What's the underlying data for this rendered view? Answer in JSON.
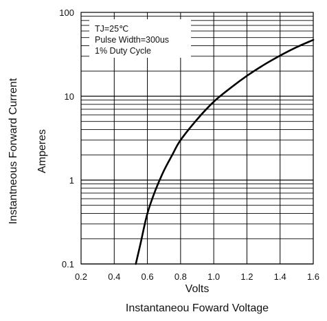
{
  "chart_data": {
    "type": "line",
    "xlabel": "Volts",
    "xlabel2": "Instantaneou Foward Voltage",
    "ylabel_line1": "Instantneous Forward Current",
    "ylabel_line2": "Amperes",
    "x_scale": "linear",
    "y_scale": "log",
    "xlim": [
      0.2,
      1.6
    ],
    "ylim": [
      0.1,
      100
    ],
    "x_ticks": [
      "0.2",
      "0.4",
      "0.6",
      "0.8",
      "1.0",
      "1.2",
      "1.4",
      "1.6"
    ],
    "y_ticks": [
      "0.1",
      "1",
      "10",
      "100"
    ],
    "grid": true,
    "annotations": [
      "TJ=25℃",
      "Pulse Width=300us",
      "1% Duty Cycle"
    ],
    "series": [
      {
        "color": "#000000",
        "x": [
          0.53,
          0.56,
          0.6,
          0.65,
          0.7,
          0.75,
          0.8,
          0.9,
          1.0,
          1.1,
          1.2,
          1.3,
          1.4,
          1.5,
          1.6
        ],
        "y": [
          0.1,
          0.18,
          0.4,
          0.77,
          1.3,
          2.0,
          3.0,
          5.3,
          8.6,
          12.5,
          17.5,
          23.5,
          30.5,
          38.5,
          47
        ]
      }
    ]
  }
}
